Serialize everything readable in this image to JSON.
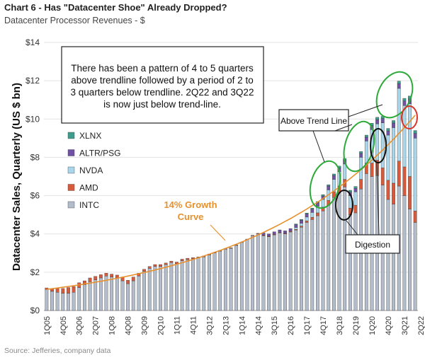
{
  "title": "Chart 6 - Has \"Datacenter Shoe\" Already Dropped?",
  "subtitle": "Datacenter Processor Revenues - $",
  "source": "Source: Jefferies, company data",
  "colors": {
    "INTC": "#b3bccb",
    "AMD": "#d65a3c",
    "NVDA": "#a9d6ea",
    "ALTR/PSG": "#6f52a3",
    "XLNX": "#3f9c8c",
    "trend": "#e8912e",
    "green_ellipse": "#2eaa3a",
    "red_ellipse": "#d9352a",
    "black_ellipse": "#111111"
  },
  "chart_data": {
    "type": "bar",
    "stacked": true,
    "ylabel": "Datacenter Sales, Quarterly (US $ bn)",
    "ylim": [
      0,
      14
    ],
    "yticks": [
      "$0",
      "$2",
      "$4",
      "$6",
      "$8",
      "$10",
      "$12",
      "$14"
    ],
    "ytick_values": [
      0,
      2,
      4,
      6,
      8,
      10,
      12,
      14
    ],
    "xtick_labels": [
      "1Q05",
      "4Q05",
      "3Q06",
      "2Q07",
      "1Q08",
      "4Q08",
      "3Q09",
      "2Q10",
      "1Q11",
      "4Q11",
      "3Q12",
      "2Q13",
      "1Q14",
      "4Q14",
      "3Q15",
      "2Q16",
      "1Q17",
      "4Q17",
      "3Q18",
      "2Q19",
      "1Q20",
      "4Q20",
      "3Q21",
      "2Q22"
    ],
    "xtick_every": 3,
    "legend": [
      "XLNX",
      "ALTR/PSG",
      "NVDA",
      "AMD",
      "INTC"
    ],
    "legend_position": "left-middle",
    "series": [
      {
        "name": "INTC",
        "values": [
          1.1,
          1.0,
          0.95,
          0.9,
          0.9,
          0.95,
          1.2,
          1.35,
          1.5,
          1.6,
          1.7,
          1.8,
          1.75,
          1.7,
          1.55,
          1.4,
          1.55,
          1.8,
          2.05,
          2.2,
          2.3,
          2.3,
          2.4,
          2.5,
          2.45,
          2.6,
          2.65,
          2.7,
          2.75,
          2.8,
          2.9,
          3.0,
          3.1,
          3.2,
          3.25,
          3.4,
          3.55,
          3.7,
          3.9,
          4.0,
          3.9,
          3.85,
          3.95,
          4.05,
          4.0,
          4.1,
          4.2,
          4.35,
          4.6,
          4.75,
          4.95,
          5.2,
          5.5,
          5.9,
          6.15,
          6.45,
          5.0,
          5.1,
          6.35,
          7.15,
          7.0,
          7.05,
          6.55,
          5.8,
          5.55,
          6.5,
          6.0,
          5.3,
          4.6
        ]
      },
      {
        "name": "AMD",
        "values": [
          0.08,
          0.12,
          0.2,
          0.25,
          0.3,
          0.3,
          0.25,
          0.2,
          0.2,
          0.18,
          0.17,
          0.15,
          0.15,
          0.15,
          0.2,
          0.18,
          0.2,
          0.15,
          0.1,
          0.1,
          0.1,
          0.1,
          0.08,
          0.08,
          0.08,
          0.08,
          0.08,
          0.06,
          0.05,
          0.05,
          0.05,
          0.04,
          0.04,
          0.04,
          0.03,
          0.03,
          0.03,
          0.03,
          0.03,
          0.03,
          0.03,
          0.03,
          0.03,
          0.03,
          0.03,
          0.04,
          0.04,
          0.06,
          0.08,
          0.12,
          0.15,
          0.2,
          0.25,
          0.3,
          0.35,
          0.4,
          0.35,
          0.4,
          0.5,
          0.55,
          0.7,
          0.8,
          0.9,
          1.0,
          1.1,
          1.3,
          1.5,
          1.7,
          0.6
        ]
      },
      {
        "name": "NVDA",
        "values": [
          0,
          0,
          0,
          0,
          0,
          0,
          0,
          0,
          0,
          0,
          0,
          0,
          0,
          0,
          0,
          0,
          0,
          0,
          0,
          0,
          0,
          0,
          0,
          0,
          0,
          0,
          0,
          0,
          0,
          0,
          0,
          0,
          0,
          0,
          0,
          0,
          0,
          0,
          0,
          0,
          0,
          0,
          0,
          0,
          0,
          0,
          0.1,
          0.15,
          0.2,
          0.25,
          0.35,
          0.4,
          0.55,
          0.65,
          0.75,
          0.8,
          0.65,
          0.7,
          1.15,
          1.15,
          1.75,
          1.9,
          2.35,
          2.36,
          2.9,
          3.8,
          3.2,
          3.8,
          3.8
        ]
      },
      {
        "name": "ALTR/PSG",
        "values": [
          0,
          0,
          0,
          0,
          0,
          0,
          0,
          0,
          0,
          0,
          0,
          0,
          0,
          0,
          0,
          0,
          0,
          0,
          0,
          0,
          0,
          0,
          0,
          0,
          0,
          0,
          0,
          0,
          0,
          0,
          0,
          0,
          0,
          0,
          0,
          0,
          0,
          0,
          0,
          0,
          0.12,
          0.12,
          0.13,
          0.13,
          0.13,
          0.14,
          0.14,
          0.15,
          0.16,
          0.17,
          0.18,
          0.18,
          0.2,
          0.2,
          0.2,
          0.2,
          0.18,
          0.18,
          0.2,
          0.2,
          0.22,
          0.22,
          0.22,
          0.22,
          0.24,
          0.24,
          0.24,
          0.25,
          0.25
        ]
      },
      {
        "name": "XLNX",
        "values": [
          0,
          0,
          0,
          0,
          0,
          0,
          0,
          0,
          0,
          0,
          0,
          0,
          0,
          0,
          0,
          0,
          0,
          0,
          0,
          0,
          0,
          0,
          0,
          0,
          0,
          0,
          0,
          0,
          0,
          0,
          0,
          0,
          0,
          0,
          0,
          0,
          0,
          0,
          0,
          0,
          0,
          0,
          0,
          0,
          0,
          0,
          0.04,
          0.05,
          0.05,
          0.06,
          0.06,
          0.07,
          0.07,
          0.08,
          0.09,
          0.09,
          0.1,
          0.1,
          0.1,
          0.11,
          0.11,
          0.12,
          0.12,
          0.13,
          0.13,
          0.14,
          0.14,
          0.15,
          0.15
        ]
      }
    ],
    "trend_line": {
      "name": "14% Growth Curve",
      "start": 1.1,
      "quarterly_growth_pct": 3.33
    }
  },
  "annotations": {
    "textbox": "There has been a pattern of 4 to 5 quarters above trendline followed by a period of 2 to 3 quarters below trendline. 2Q22 and 3Q22 is now just below trend-line.",
    "textbox_lines": [
      "There has been a pattern of 4 to 5 quarters",
      "above trendline followed by a period of 2 to",
      "3 quarters below trendline. 2Q22 and 3Q22",
      "is now just below trend-line."
    ],
    "curve_label_lines": [
      "14% Growth",
      "Curve"
    ],
    "above_trend": "Above Trend Line",
    "digestion": "Digestion"
  }
}
